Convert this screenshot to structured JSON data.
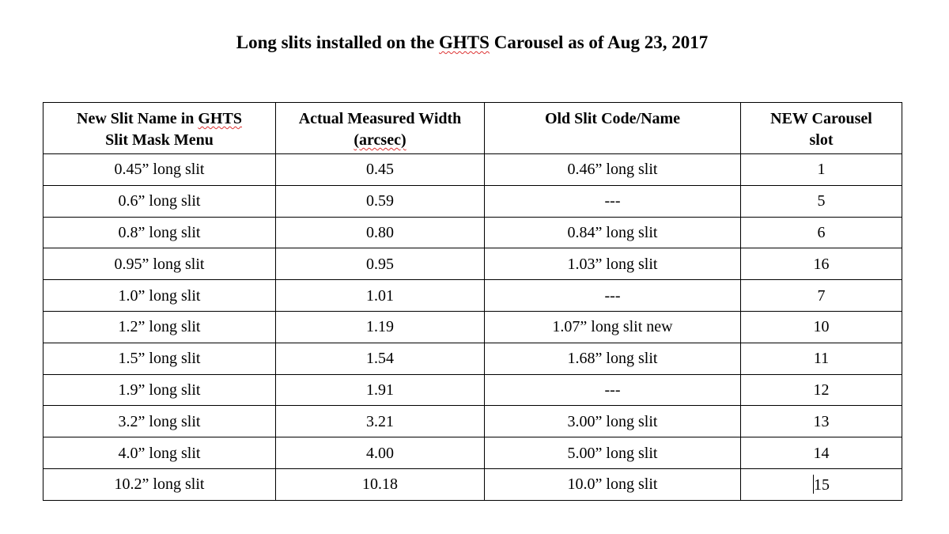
{
  "title": {
    "before": "Long slits installed on the ",
    "highlight": "GHTS",
    "after": " Carousel as of Aug 23, 2017"
  },
  "headers": [
    {
      "line1_before": "New Slit Name in ",
      "line1_highlight": "GHTS",
      "line2": "Slit Mask Menu"
    },
    {
      "line1": "Actual Measured Width",
      "line2_highlight": "(arcsec)"
    },
    {
      "line1": "Old Slit Code/Name"
    },
    {
      "line1": "NEW Carousel",
      "line2": "slot"
    }
  ],
  "rows": [
    {
      "new_name": "0.45” long slit",
      "width": "0.45",
      "old_name": "0.46” long slit",
      "slot": "1"
    },
    {
      "new_name": "0.6” long slit",
      "width": "0.59",
      "old_name": "---",
      "slot": "5"
    },
    {
      "new_name": "0.8” long slit",
      "width": "0.80",
      "old_name": "0.84” long slit",
      "slot": "6"
    },
    {
      "new_name": "0.95” long slit",
      "width": "0.95",
      "old_name": "1.03” long slit",
      "slot": "16"
    },
    {
      "new_name": "1.0” long slit",
      "width": "1.01",
      "old_name": "---",
      "slot": "7"
    },
    {
      "new_name": "1.2” long slit",
      "width": "1.19",
      "old_name": "1.07” long slit new",
      "slot": "10"
    },
    {
      "new_name": "1.5” long slit",
      "width": "1.54",
      "old_name": "1.68” long slit",
      "slot": "11"
    },
    {
      "new_name": "1.9” long slit",
      "width": "1.91",
      "old_name": "---",
      "slot": "12"
    },
    {
      "new_name": "3.2” long slit",
      "width": "3.21",
      "old_name": "3.00” long slit",
      "slot": "13"
    },
    {
      "new_name": "4.0” long slit",
      "width": "4.00",
      "old_name": "5.00” long slit",
      "slot": "14"
    },
    {
      "new_name": "10.2” long slit",
      "width": "10.18",
      "old_name": "10.0” long slit",
      "slot": "15"
    }
  ]
}
